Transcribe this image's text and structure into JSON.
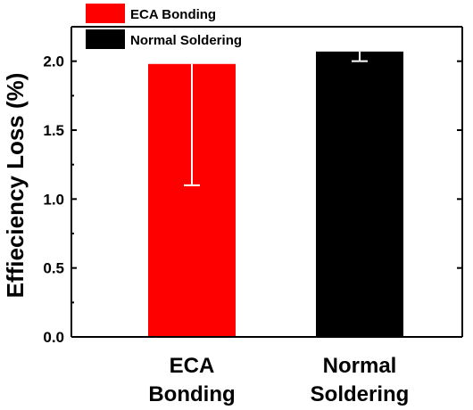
{
  "chart_data": {
    "type": "bar",
    "categories": [
      "ECA\nBonding",
      "Normal\nSoldering"
    ],
    "series": [
      {
        "name": "ECA Bonding",
        "value": 1.98,
        "error_low": 1.1,
        "error_high": 1.98,
        "color": "#ff0000"
      },
      {
        "name": "Normal Soldering",
        "value": 2.07,
        "error_low": 2.0,
        "error_high": 2.07,
        "color": "#000000"
      }
    ],
    "xlabel": "",
    "ylabel": "Effieciency Loss  (%)",
    "ylim": [
      0,
      2.25
    ],
    "yticks": [
      "0.0",
      "0.5",
      "1.0",
      "1.5",
      "2.0"
    ],
    "legend_position": "top-left",
    "grid": false
  }
}
